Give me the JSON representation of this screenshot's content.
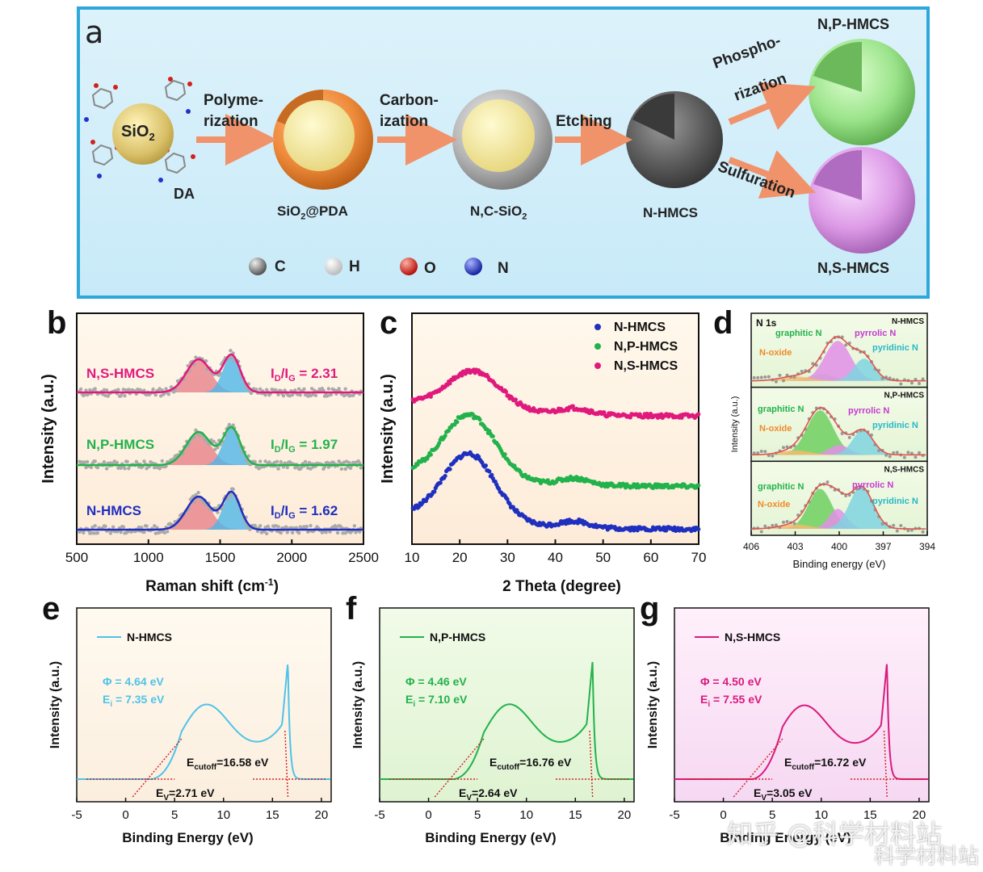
{
  "panel_a": {
    "letter": "a",
    "steps": [
      {
        "arrow_label_1": "Polyme-",
        "arrow_label_2": "rization"
      },
      {
        "arrow_label_1": "Carbon-",
        "arrow_label_2": "ization"
      },
      {
        "arrow_label_1": "Etching",
        "arrow_label_2": ""
      },
      {
        "arrow_label_1": "Phospho-",
        "arrow_label_2": "rization"
      },
      {
        "arrow_label_1": "Sulfuration",
        "arrow_label_2": ""
      }
    ],
    "labels": {
      "sio2": "SiO2",
      "da": "DA",
      "sio2_pda": "SiO2@PDA",
      "nc_sio2": "N,C-SiO2",
      "n_hmcs": "N-HMCS",
      "np_hmcs": "N,P-HMCS",
      "ns_hmcs": "N,S-HMCS"
    },
    "legend": [
      {
        "label": "C",
        "color": "#8a8a8a"
      },
      {
        "label": "H",
        "color": "#f2f2f2"
      },
      {
        "label": "O",
        "color": "#e0201b"
      },
      {
        "label": "N",
        "color": "#2233cc"
      }
    ]
  },
  "panel_b": {
    "letter": "b",
    "chart_data": {
      "type": "line",
      "xlabel": "Raman shift (cm-1)",
      "ylabel": "Intensity (a.u.)",
      "xlim": [
        500,
        2500
      ],
      "xticks": [
        "500",
        "1000",
        "1500",
        "2000",
        "2500"
      ],
      "series": [
        {
          "name": "N,S-HMCS",
          "ratio": "ID/IG = 2.31",
          "color": "#e0197d",
          "D": 1350,
          "G": 1580
        },
        {
          "name": "N,P-HMCS",
          "ratio": "ID/IG = 1.97",
          "color": "#22b24c",
          "D": 1350,
          "G": 1580
        },
        {
          "name": "N-HMCS",
          "ratio": "ID/IG = 1.62",
          "color": "#1f2fbf",
          "D": 1350,
          "G": 1580
        }
      ]
    }
  },
  "panel_c": {
    "letter": "c",
    "chart_data": {
      "type": "scatter",
      "xlabel": "2 Theta (degree)",
      "ylabel": "Intensity (a.u.)",
      "xlim": [
        10,
        70
      ],
      "xticks": [
        "10",
        "20",
        "30",
        "40",
        "50",
        "60",
        "70"
      ],
      "series": [
        {
          "name": "N-HMCS",
          "color": "#1f2fbf",
          "peaks": [
            22,
            44
          ]
        },
        {
          "name": "N,P-HMCS",
          "color": "#22b24c",
          "peaks": [
            22,
            44
          ]
        },
        {
          "name": "N,S-HMCS",
          "color": "#e0197d",
          "peaks": [
            23,
            44
          ]
        }
      ]
    }
  },
  "panel_d": {
    "letter": "d",
    "chart_data": {
      "type": "line",
      "xlabel": "Binding energy (eV)",
      "ylabel": "Intensity (a.u.)",
      "xlim": [
        406,
        394
      ],
      "xticks": [
        "406",
        "403",
        "400",
        "397",
        "394"
      ],
      "title": "N 1s",
      "subpanels": [
        {
          "name": "N-HMCS",
          "labels": [
            "graphitic N",
            "pyrrolic N",
            "pyridinic N",
            "N-oxide"
          ]
        },
        {
          "name": "N,P-HMCS",
          "labels": [
            "graphitic N",
            "pyrrolic N",
            "pyridinic N",
            "N-oxide"
          ]
        },
        {
          "name": "N,S-HMCS",
          "labels": [
            "graphitic N",
            "pyrrolic N",
            "pyridinic N",
            "N-oxide"
          ]
        }
      ]
    }
  },
  "panel_e": {
    "letter": "e",
    "chart_data": {
      "type": "line",
      "name": "N-HMCS",
      "color": "#4fc3e8",
      "phi": "Φ = 4.64 eV",
      "ei_prefix": "E",
      "ei_sub": "i",
      "ei_value": " = 7.35 eV",
      "ecut_prefix": "E",
      "ecut_sub": "cutoff",
      "ecut_value": "=16.58 eV",
      "ev_prefix": "E",
      "ev_sub": "V",
      "ev_value": "=2.71 eV",
      "cutoff": 16.58,
      "ev": 2.71,
      "xlabel": "Binding Energy (eV)",
      "ylabel": "Intensity (a.u.)",
      "xlim": [
        -5,
        21
      ],
      "xticks": [
        "-5",
        "0",
        "5",
        "10",
        "15",
        "20"
      ]
    }
  },
  "panel_f": {
    "letter": "f",
    "chart_data": {
      "type": "line",
      "name": "N,P-HMCS",
      "color": "#22b24c",
      "phi": "Φ = 4.46 eV",
      "ei_prefix": "E",
      "ei_sub": "i",
      "ei_value": " = 7.10 eV",
      "ecut_prefix": "E",
      "ecut_sub": "cutoff",
      "ecut_value": "=16.76 eV",
      "ev_prefix": "E",
      "ev_sub": "V",
      "ev_value": "=2.64 eV",
      "cutoff": 16.76,
      "ev": 2.64,
      "xlabel": "Binding Energy (eV)",
      "ylabel": "Intensity (a.u.)",
      "xlim": [
        -5,
        21
      ],
      "xticks": [
        "-5",
        "0",
        "5",
        "10",
        "15",
        "20"
      ]
    }
  },
  "panel_g": {
    "letter": "g",
    "chart_data": {
      "type": "line",
      "name": "N,S-HMCS",
      "color": "#d81b7e",
      "phi": "Φ = 4.50 eV",
      "ei_prefix": "E",
      "ei_sub": "i",
      "ei_value": " = 7.55 eV",
      "ecut_prefix": "E",
      "ecut_sub": "cutoff",
      "ecut_value": "=16.72 eV",
      "ev_prefix": "E",
      "ev_sub": "V",
      "ev_value": "=3.05 eV",
      "cutoff": 16.72,
      "ev": 3.05,
      "xlabel": "Binding Energy (eV)",
      "ylabel": "Intensity (a.u.)",
      "xlim": [
        -5,
        21
      ],
      "xticks": [
        "-5",
        "0",
        "5",
        "10",
        "15",
        "20"
      ]
    }
  },
  "watermark": {
    "line1": "知乎 @科学材料站",
    "line2": "科学材料站"
  }
}
